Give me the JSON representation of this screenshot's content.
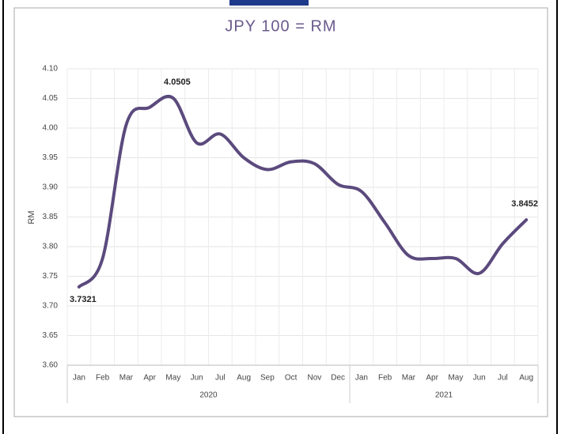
{
  "chart_data": {
    "type": "line",
    "title": "JPY 100 = RM",
    "y_label": "RM",
    "categories": [
      "Jan",
      "Feb",
      "Mar",
      "Apr",
      "May",
      "Jun",
      "Jul",
      "Aug",
      "Sep",
      "Oct",
      "Nov",
      "Dec",
      "Jan",
      "Feb",
      "Mar",
      "Apr",
      "May",
      "Jun",
      "Jul",
      "Aug"
    ],
    "groups": [
      "2020",
      "2021"
    ],
    "group_sizes": [
      12,
      8
    ],
    "series": [
      {
        "name": "JPY 100 = RM",
        "color": "#5b4a7d",
        "values": [
          3.7321,
          3.78,
          4.005,
          4.035,
          4.0505,
          3.975,
          3.99,
          3.95,
          3.93,
          3.943,
          3.94,
          3.905,
          3.893,
          3.84,
          3.785,
          3.78,
          3.78,
          3.755,
          3.805,
          3.8452
        ]
      }
    ],
    "labeled_points": [
      0,
      4,
      19
    ],
    "ylim": [
      3.6,
      4.1
    ],
    "yticks": [
      {
        "value": 3.6,
        "label": "3.60"
      },
      3.65,
      {
        "value": 3.7,
        "label": "3.70"
      },
      3.75,
      {
        "value": 3.8,
        "label": "3.80"
      },
      3.85,
      {
        "value": 3.9,
        "label": "3.90"
      },
      3.95,
      {
        "value": 4.0,
        "label": "4.00"
      },
      4.05,
      {
        "value": 4.1,
        "label": "4.10"
      }
    ],
    "grid": true
  }
}
